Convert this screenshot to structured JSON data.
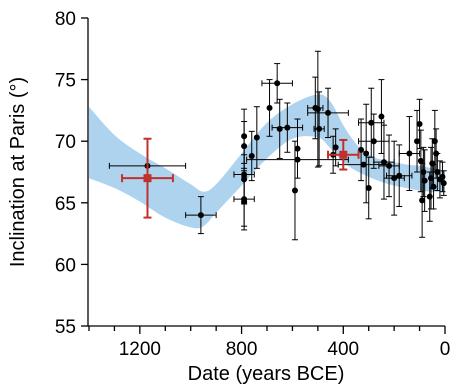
{
  "chart_data": {
    "type": "scatter",
    "xlabel": "Date (years BCE)",
    "ylabel": "Inclination at Paris (°)",
    "xlim": [
      1400,
      0
    ],
    "ylim": [
      55,
      80
    ],
    "x_axis_reversed": true,
    "xticks": [
      1200,
      800,
      400,
      0
    ],
    "yticks": [
      55,
      60,
      65,
      70,
      75,
      80
    ],
    "grid": false,
    "legend": "none",
    "colors": {
      "band": "#aed3ee",
      "points": "#000000",
      "highlight": "#c0312b"
    },
    "band": {
      "x": [
        1400,
        1300,
        1200,
        1100,
        1000,
        950,
        900,
        800,
        700,
        600,
        500,
        450,
        400,
        350,
        300,
        250,
        200,
        150,
        100,
        50,
        0
      ],
      "upper": [
        72.8,
        70.5,
        69.0,
        67.8,
        66.5,
        65.9,
        66.5,
        69.0,
        71.5,
        73.0,
        73.8,
        73.2,
        71.3,
        69.8,
        68.9,
        68.5,
        68.3,
        68.1,
        68.0,
        67.8,
        67.6
      ],
      "lower": [
        67.0,
        66.2,
        65.1,
        63.8,
        63.0,
        63.1,
        64.2,
        66.4,
        68.6,
        70.2,
        70.3,
        69.4,
        68.3,
        67.6,
        67.1,
        66.7,
        66.4,
        66.2,
        66.0,
        65.9,
        65.9
      ]
    },
    "series": [
      {
        "name": "",
        "color": "#000000",
        "points": [
          {
            "x": 1170,
            "y": 68.0,
            "xerr": 150,
            "yerr": 0
          },
          {
            "x": 960,
            "y": 64.0,
            "xerr": 60,
            "yerr": 1.5
          },
          {
            "x": 790,
            "y": 70.4,
            "xerr": 0,
            "yerr": 2.2
          },
          {
            "x": 790,
            "y": 69.6,
            "xerr": 0,
            "yerr": 2.0
          },
          {
            "x": 790,
            "y": 67.3,
            "xerr": 40,
            "yerr": 2.3
          },
          {
            "x": 790,
            "y": 66.9,
            "xerr": 0,
            "yerr": 2.0
          },
          {
            "x": 790,
            "y": 65.3,
            "xerr": 40,
            "yerr": 2.5
          },
          {
            "x": 790,
            "y": 65.1,
            "xerr": 0,
            "yerr": 2.0
          },
          {
            "x": 760,
            "y": 68.8,
            "xerr": 0,
            "yerr": 2.0
          },
          {
            "x": 740,
            "y": 70.3,
            "xerr": 0,
            "yerr": 2.5
          },
          {
            "x": 690,
            "y": 72.7,
            "xerr": 0,
            "yerr": 2.3
          },
          {
            "x": 660,
            "y": 74.7,
            "xerr": 60,
            "yerr": 1.6
          },
          {
            "x": 650,
            "y": 71.0,
            "xerr": 0,
            "yerr": 2.4
          },
          {
            "x": 620,
            "y": 71.1,
            "xerr": 60,
            "yerr": 2.0
          },
          {
            "x": 590,
            "y": 66.0,
            "xerr": 0,
            "yerr": 4.0
          },
          {
            "x": 580,
            "y": 69.4,
            "xerr": 0,
            "yerr": 2.4
          },
          {
            "x": 510,
            "y": 72.7,
            "xerr": 30,
            "yerr": 2.5
          },
          {
            "x": 500,
            "y": 72.6,
            "xerr": 0,
            "yerr": 4.7
          },
          {
            "x": 495,
            "y": 71.0,
            "xerr": 20,
            "yerr": 3.0
          },
          {
            "x": 460,
            "y": 72.3,
            "xerr": 80,
            "yerr": 2.0
          },
          {
            "x": 440,
            "y": 68.9,
            "xerr": 0,
            "yerr": 1.5
          },
          {
            "x": 430,
            "y": 69.5,
            "xerr": 0,
            "yerr": 1.5
          },
          {
            "x": 330,
            "y": 69.3,
            "xerr": 0,
            "yerr": 2.5
          },
          {
            "x": 310,
            "y": 69.0,
            "xerr": 0,
            "yerr": 4.0
          },
          {
            "x": 300,
            "y": 66.2,
            "xerr": 0,
            "yerr": 2.5
          },
          {
            "x": 290,
            "y": 71.5,
            "xerr": 50,
            "yerr": 2.8
          },
          {
            "x": 280,
            "y": 70.0,
            "xerr": 60,
            "yerr": 2.2
          },
          {
            "x": 250,
            "y": 72.0,
            "xerr": 0,
            "yerr": 3.0
          },
          {
            "x": 240,
            "y": 68.3,
            "xerr": 40,
            "yerr": 3.0
          },
          {
            "x": 220,
            "y": 68.0,
            "xerr": 40,
            "yerr": 2.5
          },
          {
            "x": 200,
            "y": 67.0,
            "xerr": 40,
            "yerr": 3.0
          },
          {
            "x": 180,
            "y": 67.2,
            "xerr": 50,
            "yerr": 2.5
          },
          {
            "x": 140,
            "y": 69.0,
            "xerr": 40,
            "yerr": 3.0
          },
          {
            "x": 110,
            "y": 70.0,
            "xerr": 0,
            "yerr": 2.5
          },
          {
            "x": 100,
            "y": 71.4,
            "xerr": 0,
            "yerr": 2.0
          },
          {
            "x": 95,
            "y": 68.4,
            "xerr": 0,
            "yerr": 2.5
          },
          {
            "x": 90,
            "y": 65.2,
            "xerr": 0,
            "yerr": 3.0
          },
          {
            "x": 85,
            "y": 67.5,
            "xerr": 0,
            "yerr": 2.0
          },
          {
            "x": 80,
            "y": 66.8,
            "xerr": 0,
            "yerr": 2.5
          },
          {
            "x": 60,
            "y": 65.5,
            "xerr": 0,
            "yerr": 2.0
          },
          {
            "x": 55,
            "y": 67.0,
            "xerr": 0,
            "yerr": 2.5
          },
          {
            "x": 50,
            "y": 68.2,
            "xerr": 0,
            "yerr": 2.0
          },
          {
            "x": 45,
            "y": 66.3,
            "xerr": 0,
            "yerr": 1.8
          },
          {
            "x": 40,
            "y": 70.0,
            "xerr": 0,
            "yerr": 2.5
          },
          {
            "x": 35,
            "y": 69.0,
            "xerr": 0,
            "yerr": 2.0
          },
          {
            "x": 30,
            "y": 67.5,
            "xerr": 0,
            "yerr": 1.5
          },
          {
            "x": 20,
            "y": 66.9,
            "xerr": 0,
            "yerr": 1.5
          },
          {
            "x": 10,
            "y": 67.1,
            "xerr": 0,
            "yerr": 1.2
          },
          {
            "x": 5,
            "y": 66.6,
            "xerr": 0,
            "yerr": 1.0
          },
          {
            "x": 320,
            "y": 68.1,
            "xerr": 100,
            "yerr": 0
          },
          {
            "x": 580,
            "y": 68.5,
            "xerr": 200,
            "yerr": 0
          }
        ]
      },
      {
        "name": "",
        "color": "#c0312b",
        "marker": "square",
        "points": [
          {
            "x": 1170,
            "y": 67.0,
            "xerr": 100,
            "yerr": 3.2
          },
          {
            "x": 400,
            "y": 68.9,
            "xerr": 60,
            "yerr": 1.2
          }
        ]
      }
    ]
  }
}
